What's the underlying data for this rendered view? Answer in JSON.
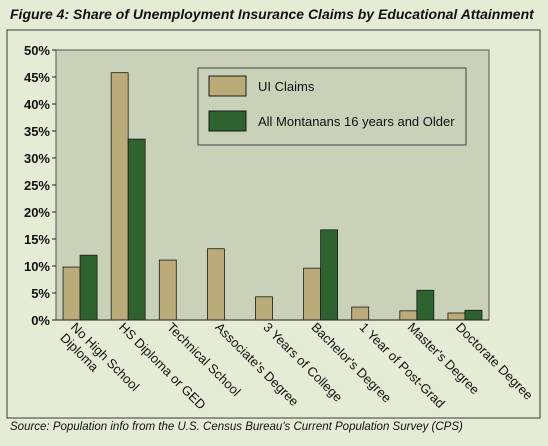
{
  "title": "Figure 4: Share of Unemployment Insurance Claims by Educational Attainment",
  "source": "Source: Population info from the U.S. Census Bureau's Current Population Survey (CPS)",
  "colors": {
    "page_background": "#e6ebd6",
    "plot_background": "#c9d1b8",
    "ui_claims": "#bbab78",
    "all_montanans": "#2e6330",
    "bar_edge": "#1a1a1a"
  },
  "chart_data": {
    "type": "bar",
    "categories": [
      "No High School Diploma",
      "HS Diploma or GED",
      "Technical School",
      "Associate's Degree",
      "3 Years of College",
      "Bachelor's Degree",
      "1 Year of Post-Grad",
      "Master's Degree",
      "Doctorate Degree"
    ],
    "category_label_lines": [
      [
        "No High School",
        "Diploma"
      ],
      [
        "HS Diploma or GED"
      ],
      [
        "Technical School"
      ],
      [
        "Associate's Degree"
      ],
      [
        "3 Years of College"
      ],
      [
        "Bachelor's Degree"
      ],
      [
        "1 Year of Post-Grad"
      ],
      [
        "Master's Degree"
      ],
      [
        "Doctorate Degree"
      ]
    ],
    "series": [
      {
        "name": "UI Claims",
        "values": [
          9.8,
          45.8,
          11.1,
          13.2,
          4.3,
          9.6,
          2.4,
          1.7,
          1.3
        ]
      },
      {
        "name": "All Montanans 16 years and Older",
        "values": [
          12.0,
          33.5,
          0,
          0,
          0,
          16.7,
          0,
          5.5,
          1.8
        ]
      }
    ],
    "yticks": [
      "0%",
      "5%",
      "10%",
      "15%",
      "20%",
      "25%",
      "30%",
      "35%",
      "40%",
      "45%",
      "50%"
    ],
    "ylim": [
      0,
      50
    ],
    "grid": false,
    "legend_position": "top-right"
  }
}
